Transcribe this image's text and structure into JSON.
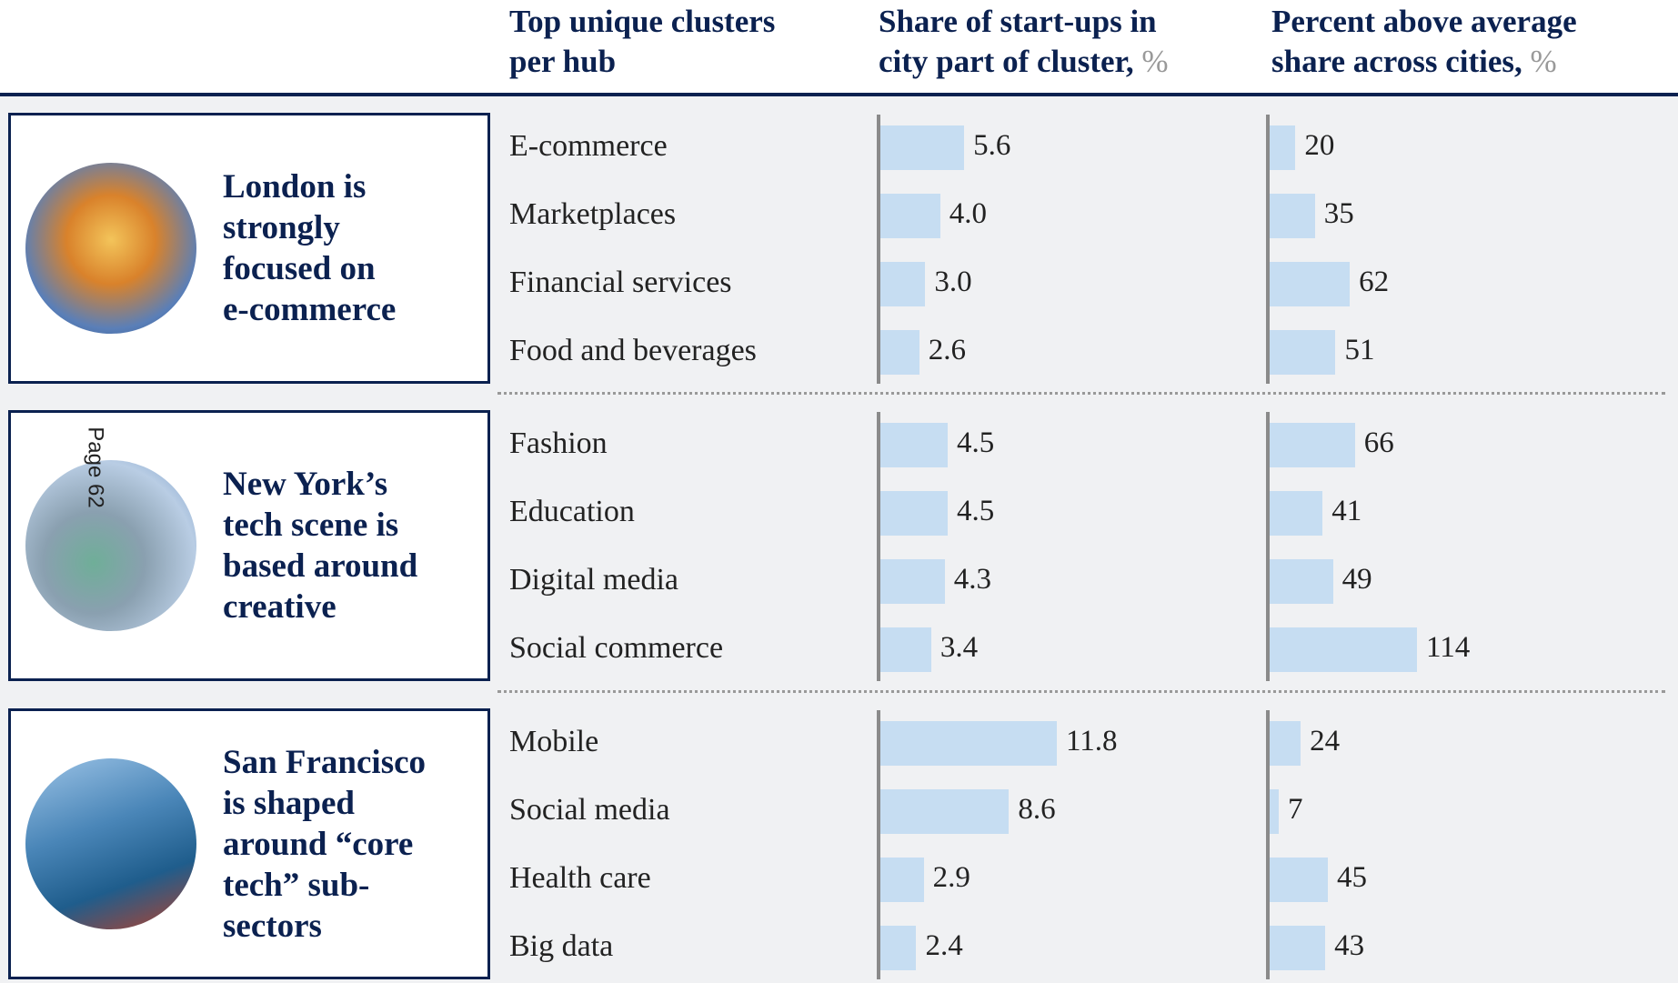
{
  "chart_data": {
    "type": "bar",
    "page_label": "Page 62",
    "headers": [
      {
        "lines": [
          "Top unique clusters",
          "per hub"
        ]
      },
      {
        "lines": [
          "Share of start-ups in",
          "city part of cluster,"
        ],
        "unit": "%"
      },
      {
        "lines": [
          "Percent above average",
          "share across cities,"
        ],
        "unit": "%"
      }
    ],
    "color": "#c6ddf2",
    "hubs": [
      {
        "caption": [
          "London is",
          "strongly",
          "focused on",
          "e-commerce"
        ],
        "categories": [
          "E-commerce",
          "Marketplaces",
          "Financial services",
          "Food and beverages"
        ],
        "share": {
          "values": [
            5.6,
            4.0,
            3.0,
            2.6
          ],
          "value_labels": [
            "5.6",
            "4.0",
            "3.0",
            "2.6"
          ]
        },
        "above": {
          "values": [
            20,
            35,
            62,
            51
          ]
        }
      },
      {
        "caption": [
          "New York’s",
          "tech scene is",
          "based around",
          "creative"
        ],
        "categories": [
          "Fashion",
          "Education",
          "Digital media",
          "Social commerce"
        ],
        "share": {
          "values": [
            4.5,
            4.5,
            4.3,
            3.4
          ],
          "value_labels": [
            "4.5",
            "4.5",
            "4.3",
            "3.4"
          ]
        },
        "above": {
          "values": [
            66,
            41,
            49,
            114
          ]
        }
      },
      {
        "caption": [
          "San Francisco",
          "is shaped",
          "around “core",
          "tech” sub-",
          "sectors"
        ],
        "categories": [
          "Mobile",
          "Social media",
          "Health care",
          "Big data"
        ],
        "share": {
          "values": [
            11.8,
            8.6,
            2.9,
            2.4
          ],
          "value_labels": [
            "11.8",
            "8.6",
            "2.9",
            "2.4"
          ]
        },
        "above": {
          "values": [
            24,
            7,
            45,
            43
          ]
        }
      }
    ]
  }
}
